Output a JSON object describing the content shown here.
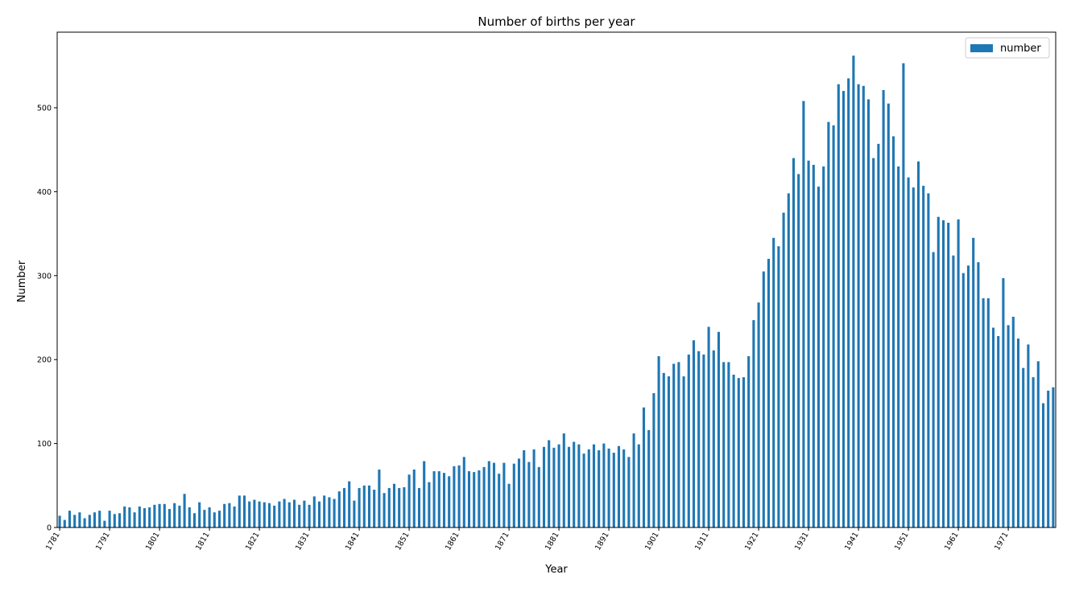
{
  "chart_data": {
    "type": "bar",
    "title": "Number of births per year",
    "xlabel": "Year",
    "ylabel": "Number",
    "categories": [
      "1781",
      null,
      null,
      null,
      null,
      null,
      null,
      null,
      null,
      null,
      "1791",
      null,
      null,
      null,
      null,
      null,
      null,
      null,
      null,
      null,
      "1801",
      null,
      null,
      null,
      null,
      null,
      null,
      null,
      null,
      null,
      "1811",
      null,
      null,
      null,
      null,
      null,
      null,
      null,
      null,
      null,
      "1821",
      null,
      null,
      null,
      null,
      null,
      null,
      null,
      null,
      null,
      "1831",
      null,
      null,
      null,
      null,
      null,
      null,
      null,
      null,
      null,
      "1841",
      null,
      null,
      null,
      null,
      null,
      null,
      null,
      null,
      null,
      "1851",
      null,
      null,
      null,
      null,
      null,
      null,
      null,
      null,
      null,
      "1861",
      null,
      null,
      null,
      null,
      null,
      null,
      null,
      null,
      null,
      "1871",
      null,
      null,
      null,
      null,
      null,
      null,
      null,
      null,
      null,
      "1881",
      null,
      null,
      null,
      null,
      null,
      null,
      null,
      null,
      null,
      "1891",
      null,
      null,
      null,
      null,
      null,
      null,
      null,
      null,
      null,
      "1901",
      null,
      null,
      null,
      null,
      null,
      null,
      null,
      null,
      null,
      "1911",
      null,
      null,
      null,
      null,
      null,
      null,
      null,
      null,
      null,
      "1921",
      null,
      null,
      null,
      null,
      null,
      null,
      null,
      null,
      null,
      "1931",
      null,
      null,
      null,
      null,
      null,
      null,
      null,
      null,
      null,
      "1941",
      null,
      null,
      null,
      null,
      null,
      null,
      null,
      null,
      null,
      "1951",
      null,
      null,
      null,
      null,
      null,
      null,
      null,
      null,
      null,
      "1961",
      null,
      null,
      null,
      null,
      null,
      null,
      null,
      null,
      null,
      "1971",
      null,
      null,
      null,
      null,
      null,
      null,
      null,
      null,
      null
    ],
    "series": [
      {
        "name": "number",
        "color": "#1f77b4",
        "values": [
          14,
          9,
          20,
          15,
          18,
          11,
          15,
          18,
          20,
          8,
          20,
          16,
          17,
          25,
          24,
          18,
          25,
          23,
          24,
          27,
          28,
          28,
          22,
          29,
          26,
          40,
          24,
          17,
          30,
          21,
          24,
          18,
          20,
          28,
          29,
          25,
          38,
          38,
          31,
          33,
          31,
          30,
          29,
          26,
          31,
          34,
          30,
          33,
          27,
          32,
          27,
          37,
          31,
          38,
          36,
          34,
          43,
          47,
          55,
          32,
          47,
          50,
          50,
          45,
          69,
          41,
          47,
          52,
          47,
          48,
          63,
          69,
          47,
          79,
          54,
          67,
          67,
          65,
          61,
          73,
          74,
          84,
          67,
          66,
          68,
          72,
          79,
          77,
          64,
          77,
          52,
          76,
          82,
          92,
          78,
          93,
          72,
          96,
          104,
          95,
          99,
          112,
          96,
          102,
          99,
          88,
          93,
          99,
          92,
          100,
          94,
          89,
          97,
          93,
          84,
          112,
          99,
          143,
          116,
          160,
          204,
          184,
          180,
          195,
          197,
          180,
          206,
          223,
          210,
          206,
          239,
          211,
          233,
          197,
          197,
          182,
          178,
          179,
          204,
          247,
          268,
          305,
          320,
          345,
          335,
          375,
          398,
          440,
          421,
          508,
          437,
          432,
          406,
          430,
          483,
          479,
          528,
          520,
          535,
          562,
          528,
          526,
          510,
          440,
          457,
          521,
          505,
          466,
          430,
          553,
          417,
          405,
          436,
          407,
          398,
          328,
          370,
          366,
          363,
          324,
          367,
          303,
          312,
          345,
          316,
          273,
          273,
          238,
          228,
          297,
          241,
          251,
          225,
          190,
          218,
          179,
          198,
          148,
          163,
          167
        ]
      }
    ],
    "ylim": [
      0,
      590
    ],
    "yticks": [
      0,
      100,
      200,
      300,
      400,
      500
    ],
    "legend": "upper right"
  }
}
